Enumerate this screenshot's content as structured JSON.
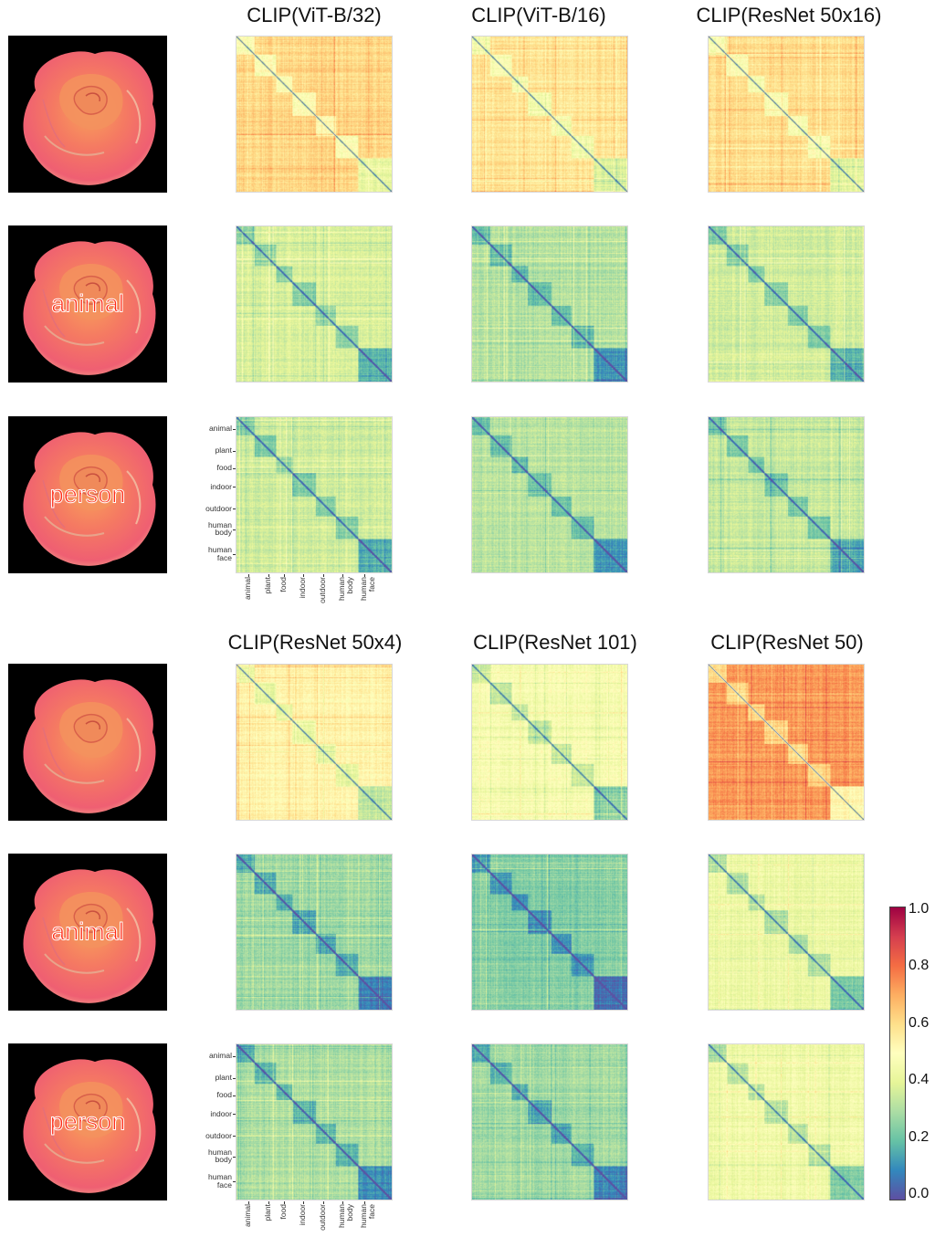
{
  "titles": {
    "top": [
      "CLIP(ViT-B/32)",
      "CLIP(ViT-B/16)",
      "CLIP(ResNet 50x16)"
    ],
    "bottom": [
      "CLIP(ResNet 50x4)",
      "CLIP(ResNet 101)",
      "CLIP(ResNet 50)"
    ]
  },
  "rose_labels": [
    "",
    "animal",
    "person",
    "",
    "animal",
    "person"
  ],
  "category_labels": {
    "y": [
      [
        "animal"
      ],
      [
        "plant"
      ],
      [
        "food"
      ],
      [
        "indoor"
      ],
      [
        "outdoor"
      ],
      [
        "human",
        "body"
      ],
      [
        "human",
        "face"
      ]
    ],
    "x": [
      "animal",
      "plant",
      "food",
      "indoor",
      "outdoor",
      "human body",
      "human face"
    ]
  },
  "colorbar": {
    "ticks": [
      "1.0",
      "0.8",
      "0.6",
      "0.4",
      "0.2",
      "0.0"
    ],
    "colors": [
      "#9e0142",
      "#d53e4f",
      "#f46d43",
      "#fdae61",
      "#fee08b",
      "#ffffbf",
      "#e6f598",
      "#abdda4",
      "#66c2a5",
      "#3288bd",
      "#5e4fa2"
    ]
  },
  "chart_data": {
    "type": "heatmap",
    "description_rows": [
      "image",
      "image + 'animal' text",
      "image + 'person' text"
    ],
    "categories": [
      "animal",
      "plant",
      "food",
      "indoor",
      "outdoor",
      "human body",
      "human face"
    ],
    "color_range": [
      0.0,
      1.0
    ],
    "panels": [
      {
        "model": "CLIP(ViT-B/32)",
        "condition": "image",
        "mean_similarity": 0.62
      },
      {
        "model": "CLIP(ViT-B/16)",
        "condition": "image",
        "mean_similarity": 0.58
      },
      {
        "model": "CLIP(ResNet 50x16)",
        "condition": "image",
        "mean_similarity": 0.6
      },
      {
        "model": "CLIP(ViT-B/32)",
        "condition": "animal",
        "mean_similarity": 0.38
      },
      {
        "model": "CLIP(ViT-B/16)",
        "condition": "animal",
        "mean_similarity": 0.32
      },
      {
        "model": "CLIP(ResNet 50x16)",
        "condition": "animal",
        "mean_similarity": 0.37
      },
      {
        "model": "CLIP(ViT-B/32)",
        "condition": "person",
        "mean_similarity": 0.36
      },
      {
        "model": "CLIP(ViT-B/16)",
        "condition": "person",
        "mean_similarity": 0.33
      },
      {
        "model": "CLIP(ResNet 50x16)",
        "condition": "person",
        "mean_similarity": 0.35
      },
      {
        "model": "CLIP(ResNet 50x4)",
        "condition": "image",
        "mean_similarity": 0.54
      },
      {
        "model": "CLIP(ResNet 101)",
        "condition": "image",
        "mean_similarity": 0.47
      },
      {
        "model": "CLIP(ResNet 50)",
        "condition": "image",
        "mean_similarity": 0.73
      },
      {
        "model": "CLIP(ResNet 50x4)",
        "condition": "animal",
        "mean_similarity": 0.28
      },
      {
        "model": "CLIP(ResNet 101)",
        "condition": "animal",
        "mean_similarity": 0.25
      },
      {
        "model": "CLIP(ResNet 50)",
        "condition": "animal",
        "mean_similarity": 0.43
      },
      {
        "model": "CLIP(ResNet 50x4)",
        "condition": "person",
        "mean_similarity": 0.31
      },
      {
        "model": "CLIP(ResNet 101)",
        "condition": "person",
        "mean_similarity": 0.29
      },
      {
        "model": "CLIP(ResNet 50)",
        "condition": "person",
        "mean_similarity": 0.44
      }
    ]
  }
}
